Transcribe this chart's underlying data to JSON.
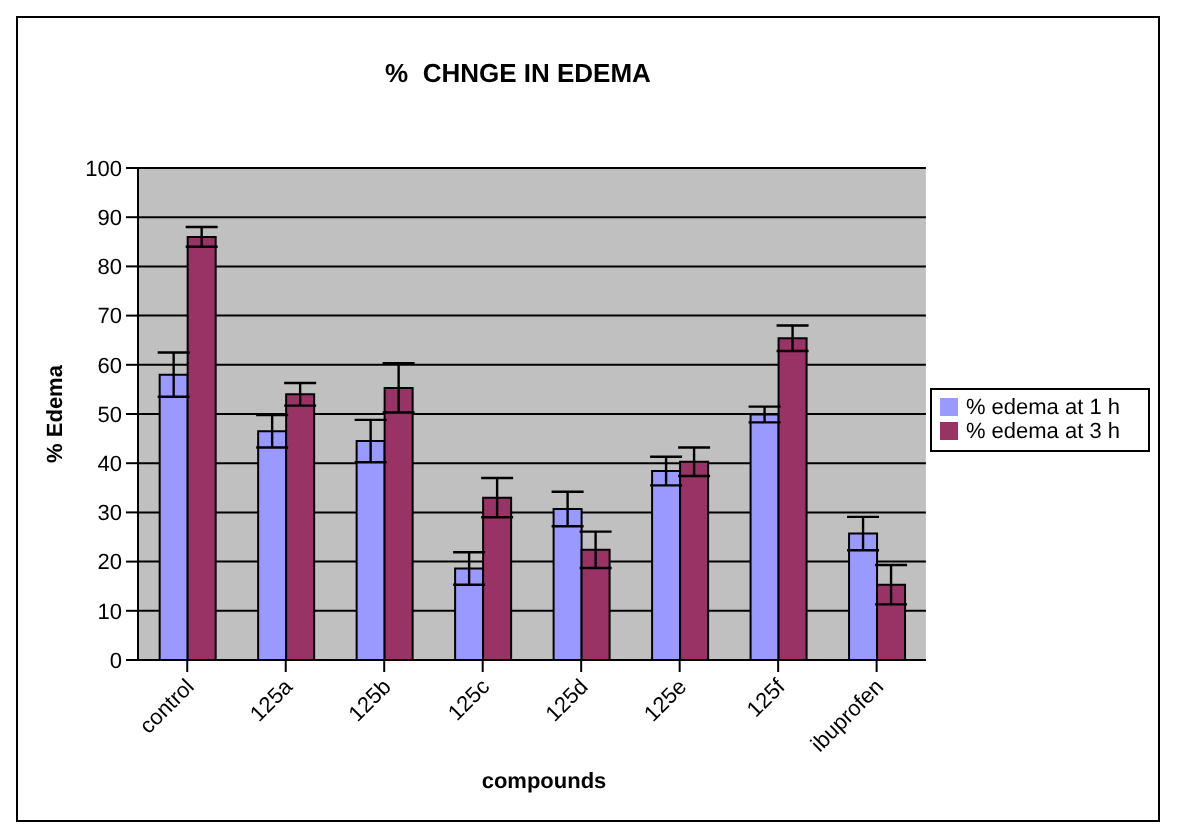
{
  "chart_data": {
    "type": "bar",
    "title": "%  CHNGE IN EDEMA",
    "xlabel": "compounds",
    "ylabel": "% Edema",
    "categories": [
      "control",
      "125a",
      "125b",
      "125c",
      "125d",
      "125e",
      "125f",
      "ibuprofen"
    ],
    "series": [
      {
        "name": "% edema at 1 h",
        "color": "#9999ff",
        "values": [
          58,
          46.5,
          44.5,
          18.6,
          30.7,
          38.4,
          49.9,
          25.7
        ],
        "errors": [
          4.5,
          3.3,
          4.3,
          3.3,
          3.5,
          2.9,
          1.6,
          3.4
        ]
      },
      {
        "name": "% edema at 3 h",
        "color": "#993366",
        "values": [
          86,
          54,
          55.3,
          33,
          22.4,
          40.3,
          65.4,
          15.3
        ],
        "errors": [
          2,
          2.3,
          5,
          4,
          3.7,
          2.9,
          2.6,
          4
        ]
      }
    ],
    "ylim": [
      0,
      100
    ],
    "yticks": [
      0,
      10,
      20,
      30,
      40,
      50,
      60,
      70,
      80,
      90,
      100
    ],
    "grid": "y",
    "legend": "right"
  }
}
